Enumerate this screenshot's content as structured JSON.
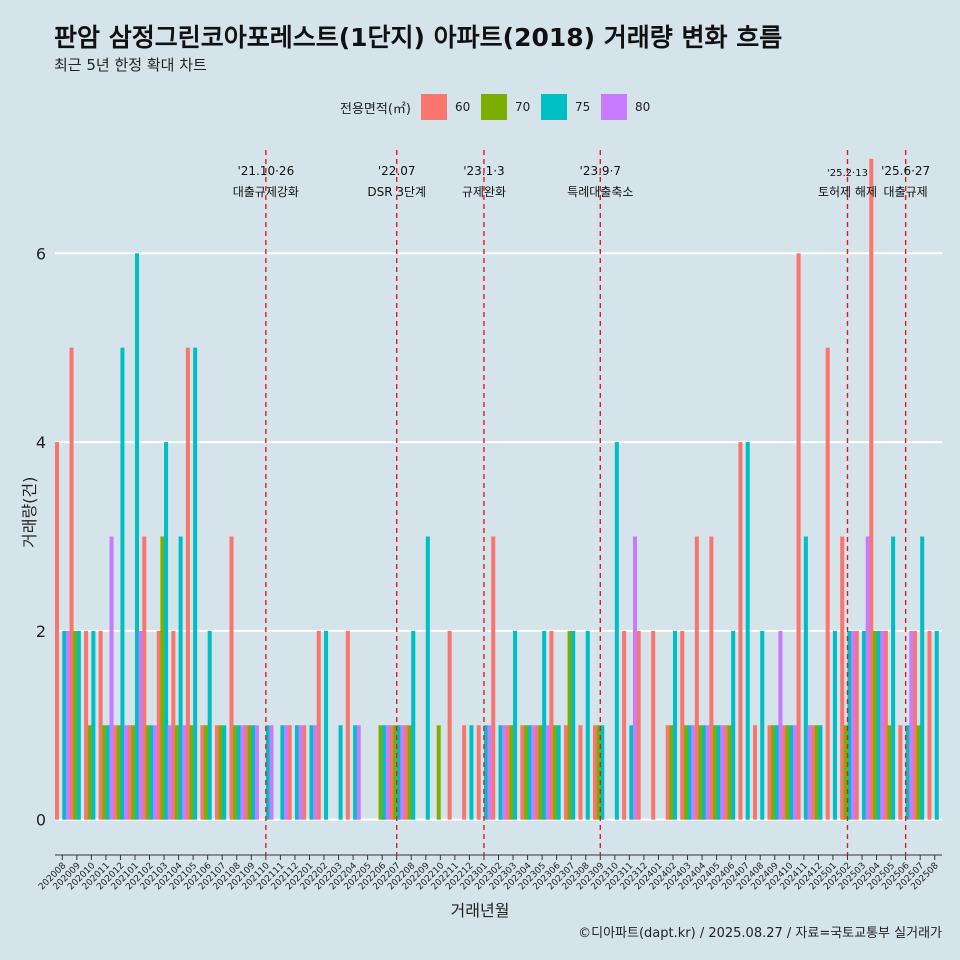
{
  "title": "판암 삼정그린코아포레스트(1단지) 아파트(2018) 거래량 변화 흐름",
  "subtitle": "최근 5년 한정 확대 차트",
  "caption": "©디아파트(dapt.kr) / 2025.08.27 / 자료=국토교통부 실거래가",
  "legend": {
    "title": "전용면적(㎡)",
    "items": [
      {
        "label": "60",
        "color": "#F8766D"
      },
      {
        "label": "70",
        "color": "#7CAE00"
      },
      {
        "label": "75",
        "color": "#00BFC4"
      },
      {
        "label": "80",
        "color": "#C77CFF"
      }
    ]
  },
  "chart_data": {
    "type": "bar",
    "title": "판암 삼정그린코아포레스트(1단지) 아파트(2018) 거래량 변화 흐름",
    "xlabel": "거래년월",
    "ylabel": "거래량(건)",
    "ylim": [
      -0.3,
      7.2
    ],
    "yticks": [
      0,
      2,
      4,
      6
    ],
    "grid": true,
    "legend_position": "top",
    "categories": [
      "202008",
      "202009",
      "202010",
      "202011",
      "202012",
      "202101",
      "202102",
      "202103",
      "202104",
      "202105",
      "202106",
      "202107",
      "202108",
      "202109",
      "202110",
      "202111",
      "202112",
      "202201",
      "202202",
      "202203",
      "202204",
      "202205",
      "202206",
      "202207",
      "202208",
      "202209",
      "202210",
      "202211",
      "202212",
      "202301",
      "202302",
      "202303",
      "202304",
      "202305",
      "202306",
      "202307",
      "202308",
      "202309",
      "202310",
      "202311",
      "202312",
      "202401",
      "202402",
      "202403",
      "202404",
      "202405",
      "202406",
      "202407",
      "202408",
      "202409",
      "202410",
      "202411",
      "202412",
      "202501",
      "202502",
      "202503",
      "202504",
      "202505",
      "202506",
      "202507",
      "202508"
    ],
    "series": [
      {
        "name": "60",
        "values": [
          4,
          5,
          2,
          2,
          1,
          1,
          3,
          2,
          2,
          5,
          1,
          1,
          3,
          1,
          0,
          0,
          1,
          1,
          2,
          0,
          2,
          0,
          0,
          1,
          1,
          0,
          0,
          2,
          1,
          1,
          3,
          1,
          1,
          1,
          2,
          1,
          1,
          1,
          0,
          2,
          2,
          2,
          1,
          2,
          3,
          3,
          1,
          4,
          1,
          1,
          1,
          6,
          1,
          5,
          3,
          2,
          7,
          2,
          1,
          2,
          2
        ]
      },
      {
        "name": "70",
        "values": [
          0,
          2,
          1,
          1,
          1,
          1,
          1,
          3,
          1,
          1,
          1,
          1,
          1,
          1,
          0,
          0,
          0,
          0,
          0,
          0,
          0,
          0,
          1,
          1,
          1,
          0,
          1,
          0,
          0,
          0,
          0,
          1,
          1,
          1,
          1,
          2,
          0,
          1,
          0,
          0,
          0,
          0,
          1,
          1,
          1,
          1,
          1,
          0,
          0,
          1,
          1,
          0,
          1,
          0,
          1,
          0,
          2,
          1,
          0,
          1,
          0
        ]
      },
      {
        "name": "75",
        "values": [
          2,
          2,
          2,
          1,
          5,
          6,
          1,
          4,
          3,
          5,
          2,
          1,
          1,
          1,
          1,
          1,
          1,
          1,
          2,
          1,
          1,
          0,
          1,
          1,
          2,
          3,
          0,
          0,
          1,
          1,
          1,
          2,
          1,
          2,
          1,
          2,
          2,
          1,
          4,
          1,
          0,
          0,
          2,
          1,
          1,
          1,
          2,
          4,
          2,
          1,
          1,
          3,
          1,
          2,
          2,
          2,
          2,
          3,
          1,
          3,
          2
        ]
      },
      {
        "name": "80",
        "values": [
          2,
          0,
          0,
          3,
          1,
          2,
          1,
          1,
          1,
          0,
          0,
          0,
          1,
          1,
          1,
          1,
          1,
          1,
          0,
          0,
          1,
          0,
          1,
          1,
          0,
          0,
          0,
          0,
          0,
          1,
          1,
          0,
          1,
          1,
          0,
          0,
          0,
          0,
          0,
          3,
          0,
          0,
          0,
          1,
          1,
          1,
          0,
          0,
          0,
          2,
          1,
          1,
          0,
          0,
          2,
          3,
          2,
          0,
          2,
          0,
          0
        ]
      }
    ],
    "annotations": [
      {
        "at": "202110",
        "date": "'21.10·26",
        "text": "대출규제강화"
      },
      {
        "at": "202207",
        "date": "'22.07",
        "text": "DSR 3단계"
      },
      {
        "at": "202301",
        "date": "'23.1·3",
        "text": "규제완화"
      },
      {
        "at": "202309",
        "date": "'23.9·7",
        "text": "특례대출축소"
      },
      {
        "at": "202502",
        "date": "'25.2·13",
        "text": "토허제 해제"
      },
      {
        "at": "202506",
        "date": "'25.6·27",
        "text": "대출규제"
      }
    ]
  }
}
